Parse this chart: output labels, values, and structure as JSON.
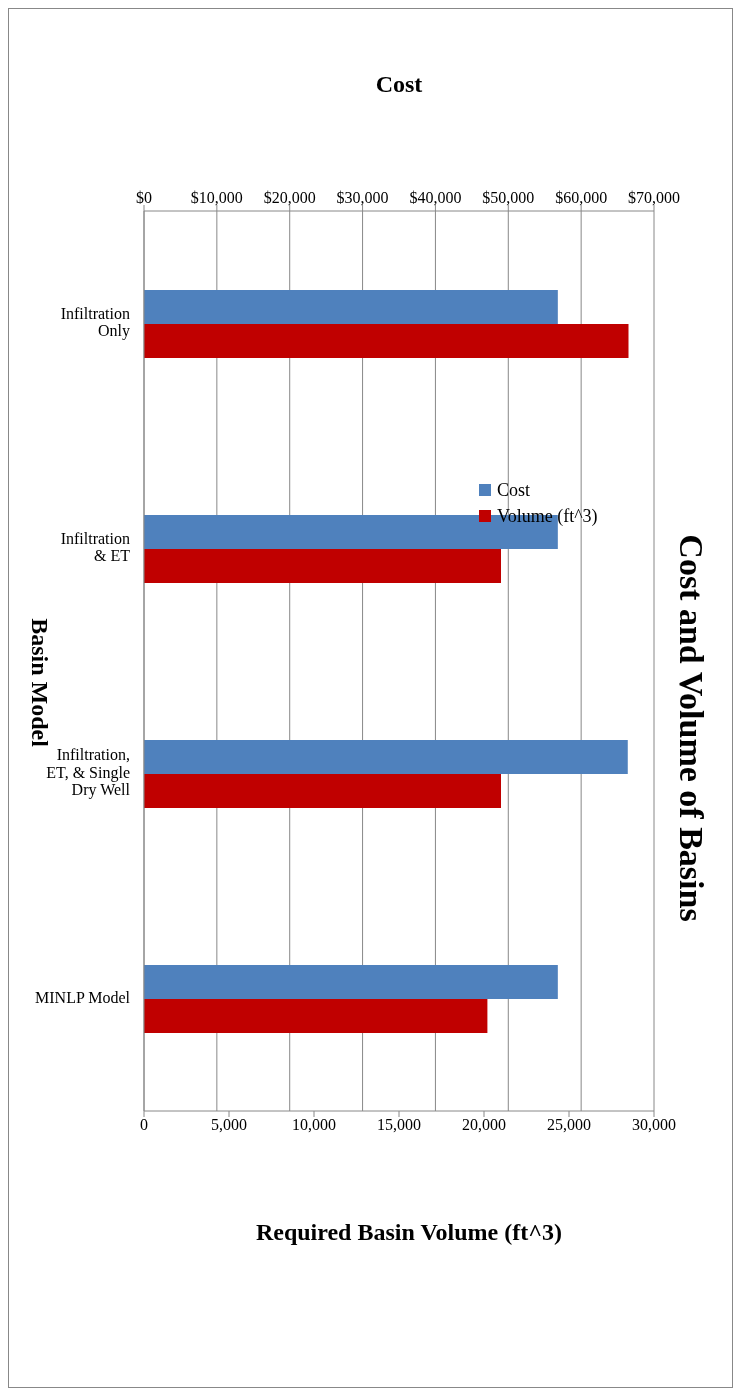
{
  "chart_data": {
    "type": "bar",
    "orientation": "horizontal",
    "title": "Cost and Volume of Basins",
    "ylabel": "Basin Model",
    "x2label": "Cost",
    "xlabel": "Required Basin Volume (ft^3)",
    "categories": [
      "Infiltration Only",
      "Infiltration & ET",
      "Infiltration, ET, & Single Dry Well",
      "MINLP Model"
    ],
    "series": [
      {
        "name": "Cost",
        "color": "#4f81bd",
        "axis": "x2",
        "values": [
          56800,
          56800,
          66400,
          56800
        ]
      },
      {
        "name": "Volume (ft^3)",
        "color": "#c00000",
        "values": [
          28500,
          21000,
          21000,
          20200
        ]
      }
    ],
    "x2lim": [
      0,
      70000
    ],
    "x2ticks": [
      {
        "value": 0,
        "label": "$0"
      },
      {
        "value": 10000,
        "label": "$10,000"
      },
      {
        "value": 20000,
        "label": "$20,000"
      },
      {
        "value": 30000,
        "label": "$30,000"
      },
      {
        "value": 40000,
        "label": "$40,000"
      },
      {
        "value": 50000,
        "label": "$50,000"
      },
      {
        "value": 60000,
        "label": "$60,000"
      },
      {
        "value": 70000,
        "label": "$70,000"
      }
    ],
    "xlim": [
      0,
      30000
    ],
    "xticks": [
      0,
      {
        "value": 5000,
        "label": "5,000"
      },
      {
        "value": 10000,
        "label": "10,000"
      },
      {
        "value": 15000,
        "label": "15,000"
      },
      {
        "value": 20000,
        "label": "20,000"
      },
      {
        "value": 25000,
        "label": "25,000"
      },
      {
        "value": 30000,
        "label": "30,000"
      }
    ],
    "grid": "x",
    "legend": "top"
  }
}
